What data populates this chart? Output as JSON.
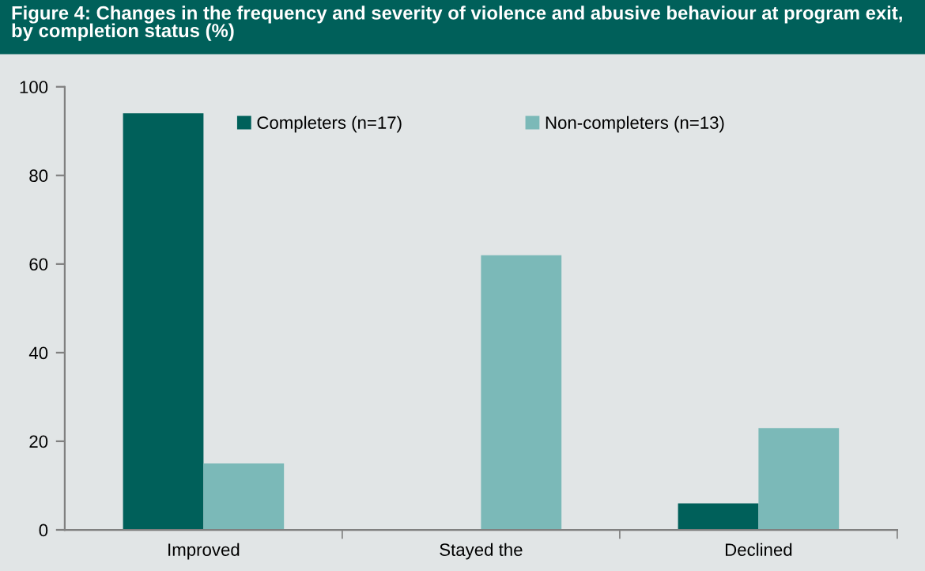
{
  "chart_data": {
    "type": "bar",
    "title": "Figure 4: Changes in the frequency and severity of violence and abusive behaviour at program exit, by completion status (%)",
    "categories": [
      "Improved",
      "Stayed the",
      "Declined"
    ],
    "series": [
      {
        "name": "Completers (n=17)",
        "color": "#00605a",
        "values": [
          94,
          0,
          6
        ]
      },
      {
        "name": "Non-completers (n=13)",
        "color": "#7bb9b8",
        "values": [
          15,
          62,
          23
        ]
      }
    ],
    "ylim": [
      0,
      100
    ],
    "yticks": [
      0,
      20,
      40,
      60,
      80,
      100
    ],
    "grid": false,
    "legend": "top"
  }
}
